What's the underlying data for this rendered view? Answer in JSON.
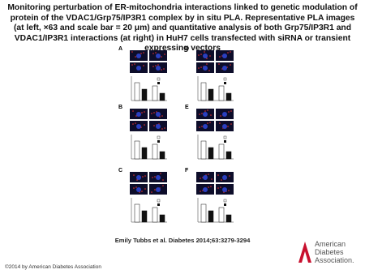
{
  "header": {
    "title": "Monitoring perturbation of ER-mitochondria interactions linked to genetic modulation of protein of the VDAC1/Grp75/IP3R1 complex by in situ PLA. Representative PLA images (at left, ×63 and scale bar = 20 μm) and quantitative analysis of both Grp75/IP3R1 and VDAC1/IP3R1 interactions (at right) in HuH7 cells transfected with siRNA or transient expressing vectors"
  },
  "figure": {
    "panels": [
      "A",
      "B",
      "C",
      "D",
      "E",
      "F"
    ]
  },
  "citation": "Emily Tubbs et al. Diabetes 2014;63:3279-3294",
  "copyright": "©2014 by American Diabetes Association",
  "logo": {
    "lines": [
      "American",
      "Diabetes",
      "Association."
    ]
  }
}
